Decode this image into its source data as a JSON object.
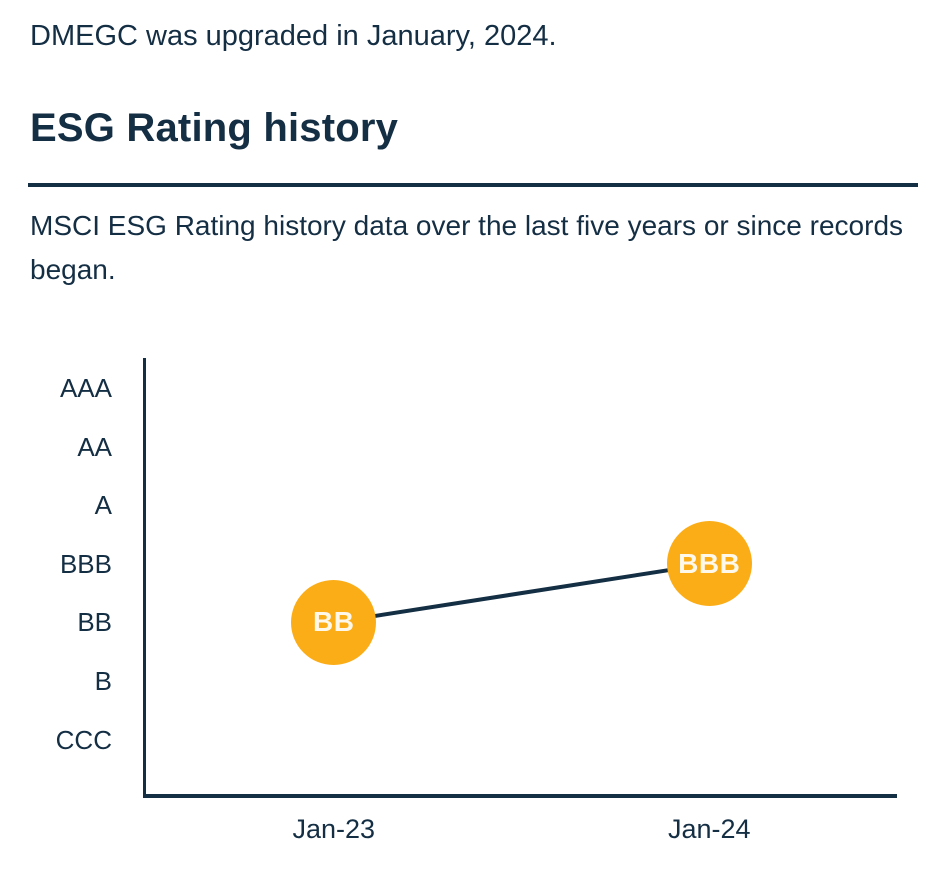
{
  "page": {
    "note": "DMEGC was upgraded in January, 2024.",
    "section_heading": "ESG Rating history",
    "section_description": "MSCI ESG Rating history data over the last five years or since records began."
  },
  "colors": {
    "text_and_axis_navy": "#142E44",
    "point_orange": "#FBAD18",
    "point_label_cream": "#FDF8EA",
    "background": "#FFFFFF"
  },
  "chart_data": {
    "type": "line",
    "title": "ESG Rating history",
    "ylabel": "",
    "xlabel": "",
    "y_axis_categories": [
      "AAA",
      "AA",
      "A",
      "BBB",
      "BB",
      "B",
      "CCC"
    ],
    "x_categories": [
      "Jan-23",
      "Jan-24"
    ],
    "series": [
      {
        "name": "MSCI ESG Rating",
        "points": [
          {
            "x": "Jan-23",
            "rating": "BB"
          },
          {
            "x": "Jan-24",
            "rating": "BBB"
          }
        ]
      }
    ],
    "grid": false,
    "legend": false,
    "marker_style": "labeled-circle"
  }
}
